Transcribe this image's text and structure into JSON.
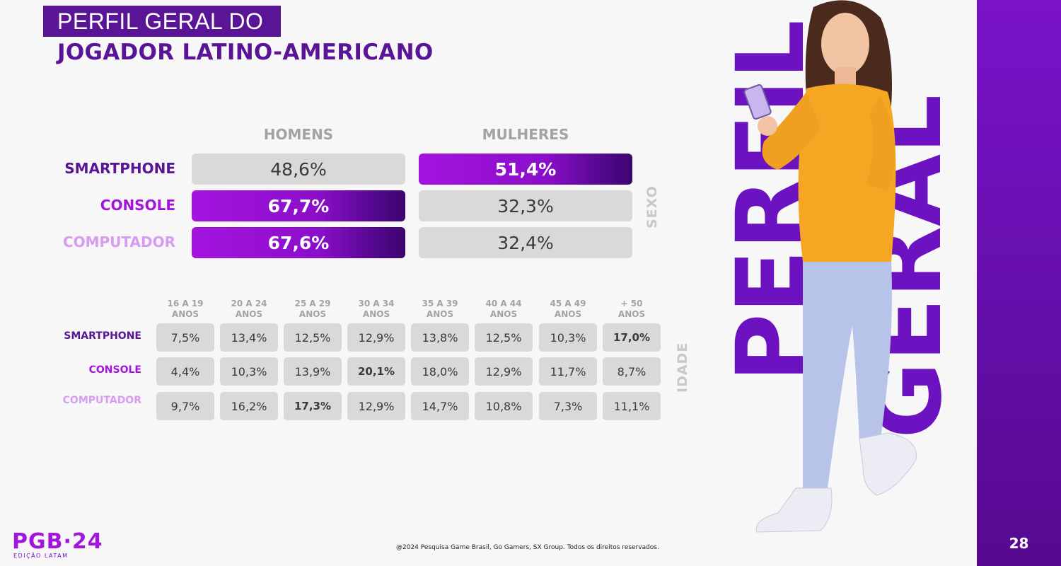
{
  "title": {
    "line1": "PERFIL GERAL DO",
    "line2": "JOGADOR LATINO-AMERICANO"
  },
  "gender": {
    "columns": [
      "HOMENS",
      "MULHERES"
    ],
    "side_label": "SEXO",
    "rows": [
      {
        "label": "SMARTPHONE",
        "label_color": "#5a1496",
        "values": [
          "48,6%",
          "51,4%"
        ],
        "highlight": [
          false,
          true
        ]
      },
      {
        "label": "CONSOLE",
        "label_color": "#a414df",
        "values": [
          "67,7%",
          "32,3%"
        ],
        "highlight": [
          true,
          false
        ]
      },
      {
        "label": "COMPUTADOR",
        "label_color": "#d79cf0",
        "values": [
          "67,6%",
          "32,4%"
        ],
        "highlight": [
          true,
          false
        ]
      }
    ]
  },
  "age": {
    "side_label": "IDADE",
    "columns": [
      [
        "16 A 19",
        "ANOS"
      ],
      [
        "20 A 24",
        "ANOS"
      ],
      [
        "25 A 29",
        "ANOS"
      ],
      [
        "30 A 34",
        "ANOS"
      ],
      [
        "35 A 39",
        "ANOS"
      ],
      [
        "40 A 44",
        "ANOS"
      ],
      [
        "45 A 49",
        "ANOS"
      ],
      [
        "+ 50",
        "ANOS"
      ]
    ],
    "rows": [
      {
        "label": "SMARTPHONE",
        "label_color": "#5a1496",
        "values": [
          "7,5%",
          "13,4%",
          "12,5%",
          "12,9%",
          "13,8%",
          "12,5%",
          "10,3%",
          "17,0%"
        ],
        "highlight_index": 7
      },
      {
        "label": "CONSOLE",
        "label_color": "#a414df",
        "values": [
          "4,4%",
          "10,3%",
          "13,9%",
          "20,1%",
          "18,0%",
          "12,9%",
          "11,7%",
          "8,7%"
        ],
        "highlight_index": 3
      },
      {
        "label": "COMPUTADOR",
        "label_color": "#d79cf0",
        "values": [
          "9,7%",
          "16,2%",
          "17,3%",
          "12,9%",
          "14,7%",
          "10,8%",
          "7,3%",
          "11,1%"
        ],
        "highlight_index": 2
      }
    ]
  },
  "side_graphic": {
    "word1": "PERFIL",
    "word2": "GERAL"
  },
  "footer": {
    "logo": "PGB·24",
    "logo_sub": "EDIÇÃO LATAM",
    "copyright": "@2024 Pesquisa Game Brasil, Go Gamers, SX Group. Todos os direitos reservados.",
    "page_number": "28"
  },
  "colors": {
    "accent": "#a414df",
    "dark": "#5a1496",
    "cell": "#d9d9d9"
  }
}
